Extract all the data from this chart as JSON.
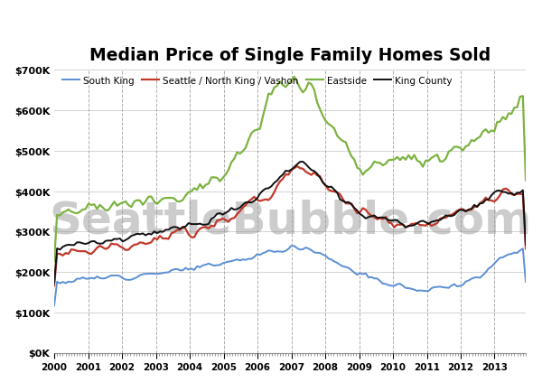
{
  "title": "Median Price of Single Family Homes Sold",
  "series": {
    "south_king": {
      "label": "South King",
      "color": "#5B8FD4",
      "linewidth": 1.4
    },
    "seattle": {
      "label": "Seattle / North King / Vashon",
      "color": "#C0392B",
      "linewidth": 1.6
    },
    "eastside": {
      "label": "Eastside",
      "color": "#7CB342",
      "linewidth": 1.6
    },
    "king_county": {
      "label": "King County",
      "color": "#111111",
      "linewidth": 1.4
    }
  },
  "ylim": [
    0,
    700000
  ],
  "yticks": [
    0,
    100000,
    200000,
    300000,
    400000,
    500000,
    600000,
    700000
  ],
  "ytick_labels": [
    "$0K",
    "$100K",
    "$200K",
    "$300K",
    "$400K",
    "$500K",
    "$600K",
    "$700K"
  ],
  "xlim_start": 2000.0,
  "xlim_end": 2013.92,
  "xtick_years": [
    2000,
    2001,
    2002,
    2003,
    2004,
    2005,
    2006,
    2007,
    2008,
    2009,
    2010,
    2011,
    2012,
    2013
  ],
  "background_color": "#ffffff",
  "grid_color": "#999999",
  "grid_style": "--",
  "watermark": "SeattleBubble.com",
  "watermark_color": "#cccccc",
  "watermark_fontsize": 36
}
